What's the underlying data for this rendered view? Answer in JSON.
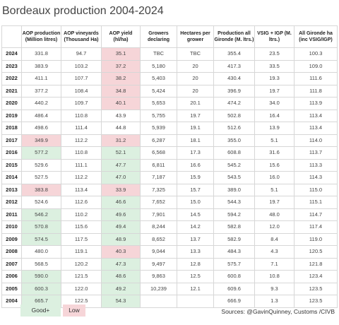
{
  "title": "Bordeaux production 2004-2024",
  "colors": {
    "good": "#dcf0e0",
    "low": "#f6d5d8"
  },
  "headers": [
    "",
    "AOP production (Million litres)",
    "AOP vineyards (Thousand Ha)",
    "AOP yield (hl/ha)",
    "Growers declaring",
    "Hectares per grower",
    "Production all Gironde (M. ltrs.)",
    "VSIG + IGP (M. ltrs.)",
    "All Gironde ha (inc VSIG/IGP)"
  ],
  "rows": [
    {
      "year": "2024",
      "cells": [
        "331.8",
        "94.7",
        "35.1",
        "TBC",
        "TBC",
        "355.4",
        "23.5",
        "100.3"
      ],
      "hl": {
        "2": "low"
      }
    },
    {
      "year": "2023",
      "cells": [
        "383.9",
        "103.2",
        "37.2",
        "5,180",
        "20",
        "417.3",
        "33.5",
        "109.0"
      ],
      "hl": {
        "2": "low"
      }
    },
    {
      "year": "2022",
      "cells": [
        "411.1",
        "107.7",
        "38.2",
        "5,403",
        "20",
        "430.4",
        "19.3",
        "111.6"
      ],
      "hl": {
        "2": "low"
      }
    },
    {
      "year": "2021",
      "cells": [
        "377.2",
        "108.4",
        "34.8",
        "5,424",
        "20",
        "396.9",
        "19.7",
        "111.8"
      ],
      "hl": {
        "2": "low"
      }
    },
    {
      "year": "2020",
      "cells": [
        "440.2",
        "109.7",
        "40.1",
        "5,653",
        "20.1",
        "474.2",
        "34.0",
        "113.9"
      ],
      "hl": {
        "2": "low"
      }
    },
    {
      "year": "2019",
      "cells": [
        "486.4",
        "110.8",
        "43.9",
        "5,755",
        "19.7",
        "502.8",
        "16.4",
        "113.4"
      ],
      "hl": {}
    },
    {
      "year": "2018",
      "cells": [
        "498.6",
        "111.4",
        "44.8",
        "5,939",
        "19.1",
        "512.6",
        "13.9",
        "113.4"
      ],
      "hl": {}
    },
    {
      "year": "2017",
      "cells": [
        "349.9",
        "112.2",
        "31.2",
        "6,287",
        "18.1",
        "355.0",
        "5.1",
        "114.0"
      ],
      "hl": {
        "0": "low",
        "2": "low"
      }
    },
    {
      "year": "2016",
      "cells": [
        "577.2",
        "110.8",
        "52.1",
        "6,568",
        "17.3",
        "608.8",
        "31.6",
        "113.7"
      ],
      "hl": {
        "0": "good",
        "2": "good"
      }
    },
    {
      "year": "2015",
      "cells": [
        "529.6",
        "111.1",
        "47.7",
        "6,811",
        "16.6",
        "545.2",
        "15.6",
        "113.3"
      ],
      "hl": {
        "2": "good"
      }
    },
    {
      "year": "2014",
      "cells": [
        "527.5",
        "112.2",
        "47.0",
        "7,187",
        "15.9",
        "543.5",
        "16.0",
        "114.3"
      ],
      "hl": {
        "2": "good"
      }
    },
    {
      "year": "2013",
      "cells": [
        "383.8",
        "113.4",
        "33.9",
        "7,325",
        "15.7",
        "389.0",
        "5.1",
        "115.0"
      ],
      "hl": {
        "0": "low",
        "2": "low"
      }
    },
    {
      "year": "2012",
      "cells": [
        "524.6",
        "112.6",
        "46.6",
        "7,652",
        "15.0",
        "544.3",
        "19.7",
        "115.1"
      ],
      "hl": {
        "2": "good"
      }
    },
    {
      "year": "2011",
      "cells": [
        "546.2",
        "110.2",
        "49.6",
        "7,901",
        "14.5",
        "594.2",
        "48.0",
        "114.7"
      ],
      "hl": {
        "0": "good",
        "2": "good"
      }
    },
    {
      "year": "2010",
      "cells": [
        "570.8",
        "115.6",
        "49.4",
        "8,244",
        "14.2",
        "582.8",
        "12.0",
        "117.4"
      ],
      "hl": {
        "0": "good",
        "2": "good"
      }
    },
    {
      "year": "2009",
      "cells": [
        "574.5",
        "117.5",
        "48.9",
        "8,652",
        "13.7",
        "582.9",
        "8.4",
        "119.0"
      ],
      "hl": {
        "0": "good",
        "2": "good"
      }
    },
    {
      "year": "2008",
      "cells": [
        "480.0",
        "119.1",
        "40.3",
        "9,044",
        "13.3",
        "484.3",
        "4.3",
        "120.5"
      ],
      "hl": {
        "2": "low"
      }
    },
    {
      "year": "2007",
      "cells": [
        "568.5",
        "120.2",
        "47.3",
        "9,497",
        "12.8",
        "575.7",
        "7.1",
        "121.8"
      ],
      "hl": {
        "2": "good"
      }
    },
    {
      "year": "2006",
      "cells": [
        "590.0",
        "121.5",
        "48.6",
        "9,863",
        "12.5",
        "600.8",
        "10.8",
        "123.4"
      ],
      "hl": {
        "0": "good",
        "2": "good"
      }
    },
    {
      "year": "2005",
      "cells": [
        "600.3",
        "122.0",
        "49.2",
        "10,239",
        "12.1",
        "609.6",
        "9.3",
        "123.5"
      ],
      "hl": {
        "0": "good",
        "2": "good"
      }
    },
    {
      "year": "2004",
      "cells": [
        "665.7",
        "122.5",
        "54.3",
        "",
        "",
        "666.9",
        "1.3",
        "123.5"
      ],
      "hl": {
        "0": "good",
        "2": "good"
      }
    }
  ],
  "legend": {
    "good": "Good+",
    "low": "Low"
  },
  "source": "Sources: @GavinQuinney, Customs /CIVB"
}
